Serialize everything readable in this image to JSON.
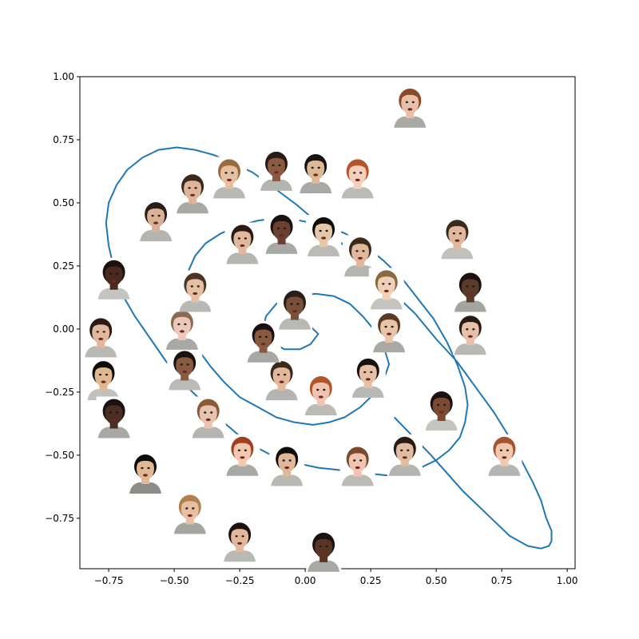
{
  "chart_data": {
    "type": "line",
    "title": "",
    "xlabel": "",
    "ylabel": "",
    "xlim": [
      -0.86,
      1.03
    ],
    "ylim": [
      -0.95,
      1.0
    ],
    "grid": false,
    "x_ticks": [
      -0.75,
      -0.5,
      -0.25,
      0.0,
      0.25,
      0.5,
      0.75,
      1.0
    ],
    "x_tick_labels": [
      "−0.75",
      "−0.50",
      "−0.25",
      "0.00",
      "0.25",
      "0.50",
      "0.75",
      "1.00"
    ],
    "y_ticks": [
      -0.75,
      -0.5,
      -0.25,
      0.0,
      0.25,
      0.5,
      0.75,
      1.0
    ],
    "y_tick_labels": [
      "−0.75",
      "−0.50",
      "−0.25",
      "0.00",
      "0.25",
      "0.50",
      "0.75",
      "1.00"
    ],
    "line_color": "#1f77b4",
    "series": [
      {
        "x": [
          0.02,
          0.05,
          0.02,
          -0.02,
          -0.08,
          -0.13,
          -0.16,
          -0.15,
          -0.11,
          -0.04,
          0.04,
          0.11,
          0.17,
          0.22,
          0.26,
          0.3,
          0.32,
          0.3,
          0.26,
          0.21,
          0.15,
          0.09,
          0.03,
          -0.04,
          -0.11,
          -0.18,
          -0.25,
          -0.31,
          -0.36,
          -0.41,
          -0.44,
          -0.46,
          -0.47,
          -0.45,
          -0.42,
          -0.38,
          -0.32,
          -0.25,
          -0.18,
          -0.1,
          -0.02,
          0.07,
          0.15,
          0.23,
          0.3,
          0.37,
          0.43,
          0.49,
          0.54,
          0.58,
          0.61,
          0.62,
          0.61,
          0.59,
          0.55,
          0.5,
          0.44,
          0.38,
          0.31,
          0.22,
          0.14,
          0.05,
          -0.04,
          -0.13,
          -0.22,
          -0.3,
          -0.38,
          -0.46,
          -0.53,
          -0.59,
          -0.65,
          -0.7,
          -0.73,
          -0.75,
          -0.76,
          -0.75,
          -0.72,
          -0.68,
          -0.62,
          -0.56,
          -0.49,
          -0.42,
          -0.35,
          -0.28,
          -0.2,
          -0.12,
          -0.03,
          0.06,
          0.15,
          0.24,
          0.33,
          0.42,
          0.5,
          0.58,
          0.65,
          0.72,
          0.78,
          0.83,
          0.87,
          0.9,
          0.92,
          0.94,
          0.94,
          0.93,
          0.9,
          0.85,
          0.78,
          0.7,
          0.6,
          0.48,
          0.34
        ],
        "y": [
          0.01,
          -0.02,
          -0.06,
          -0.08,
          -0.08,
          -0.05,
          0.0,
          0.05,
          0.1,
          0.13,
          0.14,
          0.13,
          0.1,
          0.05,
          0.0,
          -0.07,
          -0.14,
          -0.2,
          -0.26,
          -0.31,
          -0.35,
          -0.37,
          -0.38,
          -0.37,
          -0.35,
          -0.31,
          -0.27,
          -0.21,
          -0.15,
          -0.08,
          0.0,
          0.08,
          0.15,
          0.22,
          0.29,
          0.34,
          0.38,
          0.41,
          0.43,
          0.44,
          0.43,
          0.41,
          0.38,
          0.33,
          0.27,
          0.2,
          0.12,
          0.04,
          -0.05,
          -0.14,
          -0.23,
          -0.3,
          -0.37,
          -0.43,
          -0.48,
          -0.52,
          -0.55,
          -0.57,
          -0.58,
          -0.57,
          -0.56,
          -0.55,
          -0.53,
          -0.5,
          -0.45,
          -0.38,
          -0.3,
          -0.22,
          -0.13,
          -0.04,
          0.05,
          0.14,
          0.24,
          0.33,
          0.42,
          0.5,
          0.57,
          0.63,
          0.68,
          0.71,
          0.72,
          0.71,
          0.69,
          0.66,
          0.62,
          0.56,
          0.49,
          0.41,
          0.33,
          0.24,
          0.15,
          0.06,
          -0.04,
          -0.13,
          -0.23,
          -0.33,
          -0.43,
          -0.53,
          -0.61,
          -0.68,
          -0.75,
          -0.8,
          -0.84,
          -0.86,
          -0.87,
          -0.86,
          -0.82,
          -0.74,
          -0.64,
          -0.5,
          -0.35
        ]
      }
    ],
    "faces": [
      {
        "x": 0.4,
        "y": 0.88,
        "skin": "#e8c0a8",
        "hair": "#8a4a2a",
        "bg": "#a9a9a5"
      },
      {
        "x": 0.58,
        "y": 0.36,
        "skin": "#e2b89c",
        "hair": "#3a2a1e",
        "bg": "#c2c0bc"
      },
      {
        "x": 0.63,
        "y": 0.15,
        "skin": "#5a3a2a",
        "hair": "#1a1210",
        "bg": "#a4a4a0"
      },
      {
        "x": 0.63,
        "y": -0.02,
        "skin": "#e6c0a8",
        "hair": "#2a1a14",
        "bg": "#b8b8b4"
      },
      {
        "x": 0.52,
        "y": -0.32,
        "skin": "#7a4a32",
        "hair": "#1a1210",
        "bg": "#c4c4c0"
      },
      {
        "x": 0.76,
        "y": -0.5,
        "skin": "#f0c8b0",
        "hair": "#a4552e",
        "bg": "#b4b4b0"
      },
      {
        "x": 0.2,
        "y": 0.6,
        "skin": "#f2d0bc",
        "hair": "#b2552a",
        "bg": "#bcbab6"
      },
      {
        "x": 0.04,
        "y": 0.62,
        "skin": "#ddb894",
        "hair": "#1a1210",
        "bg": "#a8a8a4"
      },
      {
        "x": -0.11,
        "y": 0.63,
        "skin": "#8a5a44",
        "hair": "#2a1a14",
        "bg": "#b4b4b0"
      },
      {
        "x": -0.29,
        "y": 0.6,
        "skin": "#e6c0a0",
        "hair": "#9a6a40",
        "bg": "#b8b8b4"
      },
      {
        "x": -0.43,
        "y": 0.54,
        "skin": "#e0b498",
        "hair": "#3a2a1e",
        "bg": "#a8a8a4"
      },
      {
        "x": -0.57,
        "y": 0.43,
        "skin": "#dcb094",
        "hair": "#2a1e18",
        "bg": "#b4b4b0"
      },
      {
        "x": -0.73,
        "y": 0.2,
        "skin": "#4a2a1e",
        "hair": "#1a1210",
        "bg": "#c4c4c0"
      },
      {
        "x": -0.78,
        "y": -0.03,
        "skin": "#e2b89c",
        "hair": "#2a1a14",
        "bg": "#b8b8b4"
      },
      {
        "x": -0.77,
        "y": -0.2,
        "skin": "#e0b890",
        "hair": "#0f0c0a",
        "bg": "#c0c0bc"
      },
      {
        "x": -0.73,
        "y": -0.35,
        "skin": "#4a2e22",
        "hair": "#1a1210",
        "bg": "#a8a8a4"
      },
      {
        "x": -0.61,
        "y": -0.57,
        "skin": "#e2b894",
        "hair": "#0f0c0a",
        "bg": "#8c8c88"
      },
      {
        "x": -0.44,
        "y": -0.73,
        "skin": "#e8c0a0",
        "hair": "#b08050",
        "bg": "#a4a4a0"
      },
      {
        "x": -0.25,
        "y": -0.84,
        "skin": "#e2b89c",
        "hair": "#1a1210",
        "bg": "#b8b8b4"
      },
      {
        "x": 0.07,
        "y": -0.88,
        "skin": "#5a3424",
        "hair": "#1a1210",
        "bg": "#a8a8a4"
      },
      {
        "x": 0.38,
        "y": -0.5,
        "skin": "#e2bca0",
        "hair": "#2a1a14",
        "bg": "#b4b4b0"
      },
      {
        "x": 0.2,
        "y": -0.54,
        "skin": "#f0c4b0",
        "hair": "#7a4a2a",
        "bg": "#bcbab6"
      },
      {
        "x": -0.07,
        "y": -0.54,
        "skin": "#e0b898",
        "hair": "#0f0c0a",
        "bg": "#b8b8b4"
      },
      {
        "x": -0.24,
        "y": -0.5,
        "skin": "#f2c8b0",
        "hair": "#a0401e",
        "bg": "#a8a8a4"
      },
      {
        "x": -0.37,
        "y": -0.35,
        "skin": "#e8c4b0",
        "hair": "#8a5a34",
        "bg": "#b4b4b0"
      },
      {
        "x": -0.46,
        "y": -0.16,
        "skin": "#8a5a40",
        "hair": "#1a1210",
        "bg": "#bcbab6"
      },
      {
        "x": -0.47,
        "y": 0.0,
        "skin": "#ecc8b8",
        "hair": "#8a6a50",
        "bg": "#a8a8a4"
      },
      {
        "x": -0.42,
        "y": 0.15,
        "skin": "#e6c0a4",
        "hair": "#4a3424",
        "bg": "#b8b8b4"
      },
      {
        "x": -0.24,
        "y": 0.34,
        "skin": "#e2b89c",
        "hair": "#2a1a14",
        "bg": "#b4b4b0"
      },
      {
        "x": -0.09,
        "y": 0.38,
        "skin": "#6a4030",
        "hair": "#1a1210",
        "bg": "#a8a8a4"
      },
      {
        "x": 0.07,
        "y": 0.37,
        "skin": "#e6c8a8",
        "hair": "#0f0c0a",
        "bg": "#bcbab6"
      },
      {
        "x": 0.21,
        "y": 0.29,
        "skin": "#e2b89c",
        "hair": "#3a2a1e",
        "bg": "#b4b4b0"
      },
      {
        "x": 0.31,
        "y": 0.16,
        "skin": "#f0d0b8",
        "hair": "#8a6a40",
        "bg": "#c4c4c0"
      },
      {
        "x": 0.32,
        "y": -0.01,
        "skin": "#e8c4a8",
        "hair": "#5a3a24",
        "bg": "#a8a8a4"
      },
      {
        "x": 0.24,
        "y": -0.19,
        "skin": "#e6c0a4",
        "hair": "#1a1210",
        "bg": "#b8b8b4"
      },
      {
        "x": 0.06,
        "y": -0.26,
        "skin": "#f0c4b0",
        "hair": "#b2552a",
        "bg": "#bcbab6"
      },
      {
        "x": -0.09,
        "y": -0.2,
        "skin": "#e2b89c",
        "hair": "#3a2a1e",
        "bg": "#b4b4b0"
      },
      {
        "x": -0.16,
        "y": -0.05,
        "skin": "#8a5a40",
        "hair": "#1a1210",
        "bg": "#a8a8a4"
      },
      {
        "x": -0.04,
        "y": 0.08,
        "skin": "#7a5038",
        "hair": "#2a1e18",
        "bg": "#b8b8b4"
      }
    ]
  }
}
